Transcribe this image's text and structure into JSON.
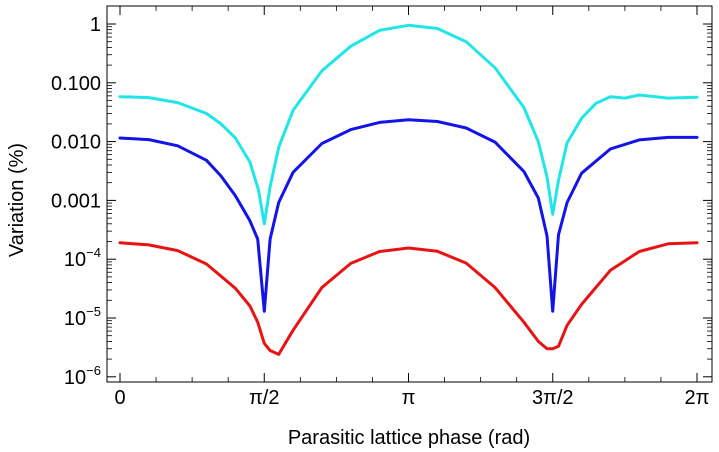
{
  "chart_data": {
    "type": "line",
    "title": "",
    "xlabel": "Parasitic lattice phase (rad)",
    "ylabel": "Variation (%)",
    "x_unit": "rad",
    "xlim": [
      0,
      6.2832
    ],
    "ylim_log10": [
      -6,
      0.1
    ],
    "y_scale": "log",
    "x_ticks": [
      {
        "value": 0,
        "label": "0"
      },
      {
        "value": 1.5708,
        "label": "π/2"
      },
      {
        "value": 3.1416,
        "label": "π"
      },
      {
        "value": 4.7124,
        "label": "3π/2"
      },
      {
        "value": 6.2832,
        "label": "2π"
      }
    ],
    "y_ticks": [
      {
        "value": 1,
        "label": "1"
      },
      {
        "value": 0.1,
        "label": "0.100"
      },
      {
        "value": 0.01,
        "label": "0.010"
      },
      {
        "value": 0.001,
        "label": "0.001"
      },
      {
        "value": 0.0001,
        "base": "10",
        "exp": "−4"
      },
      {
        "value": 1e-05,
        "base": "10",
        "exp": "−5"
      },
      {
        "value": 1e-06,
        "base": "10",
        "exp": "−6"
      }
    ],
    "legend": "none",
    "series": [
      {
        "name": "cyan",
        "color": "#22E5E8",
        "x": [
          0,
          0.314,
          0.628,
          0.942,
          1.1,
          1.257,
          1.414,
          1.508,
          1.571,
          1.634,
          1.728,
          1.885,
          2.199,
          2.513,
          2.827,
          3.142,
          3.456,
          3.77,
          4.084,
          4.398,
          4.555,
          4.65,
          4.712,
          4.775,
          4.869,
          5.027,
          5.184,
          5.341,
          5.498,
          5.655,
          5.969,
          6.283
        ],
        "values": [
          0.058,
          0.056,
          0.046,
          0.03,
          0.02,
          0.0115,
          0.0045,
          0.0015,
          0.0004,
          0.0017,
          0.008,
          0.034,
          0.16,
          0.42,
          0.78,
          0.95,
          0.84,
          0.5,
          0.18,
          0.038,
          0.01,
          0.0025,
          0.00058,
          0.0022,
          0.0095,
          0.025,
          0.045,
          0.058,
          0.055,
          0.062,
          0.055,
          0.057
        ]
      },
      {
        "name": "blue",
        "color": "#1414E6",
        "x": [
          0,
          0.314,
          0.628,
          0.942,
          1.1,
          1.257,
          1.414,
          1.5,
          1.571,
          1.634,
          1.728,
          1.885,
          2.199,
          2.513,
          2.827,
          3.142,
          3.456,
          3.77,
          4.084,
          4.398,
          4.555,
          4.65,
          4.712,
          4.775,
          4.869,
          5.027,
          5.341,
          5.655,
          5.969,
          6.283
        ],
        "values": [
          0.0115,
          0.0108,
          0.0085,
          0.0048,
          0.0026,
          0.0012,
          0.00045,
          0.00022,
          1.3e-05,
          0.00022,
          0.00092,
          0.003,
          0.0093,
          0.016,
          0.0212,
          0.0235,
          0.022,
          0.017,
          0.0098,
          0.0031,
          0.0011,
          0.00025,
          1.3e-05,
          0.00026,
          0.00092,
          0.0029,
          0.0075,
          0.0107,
          0.0118,
          0.0118
        ]
      },
      {
        "name": "red",
        "color": "#E61414",
        "x": [
          0,
          0.314,
          0.628,
          0.942,
          1.257,
          1.414,
          1.5,
          1.571,
          1.634,
          1.728,
          1.885,
          2.199,
          2.513,
          2.827,
          3.142,
          3.456,
          3.77,
          4.084,
          4.398,
          4.555,
          4.65,
          4.712,
          4.775,
          4.869,
          5.027,
          5.341,
          5.655,
          5.969,
          6.283
        ],
        "values": [
          0.00019,
          0.000175,
          0.00014,
          8.3e-05,
          3.2e-05,
          1.6e-05,
          8.5e-06,
          3.7e-06,
          2.8e-06,
          2.4e-06,
          6.2e-06,
          3.3e-05,
          8.5e-05,
          0.000135,
          0.000155,
          0.000136,
          8.6e-05,
          3.3e-05,
          8.5e-06,
          4e-06,
          3e-06,
          3e-06,
          3.3e-06,
          7.5e-06,
          1.7e-05,
          6.5e-05,
          0.000135,
          0.000183,
          0.00019
        ]
      }
    ]
  }
}
